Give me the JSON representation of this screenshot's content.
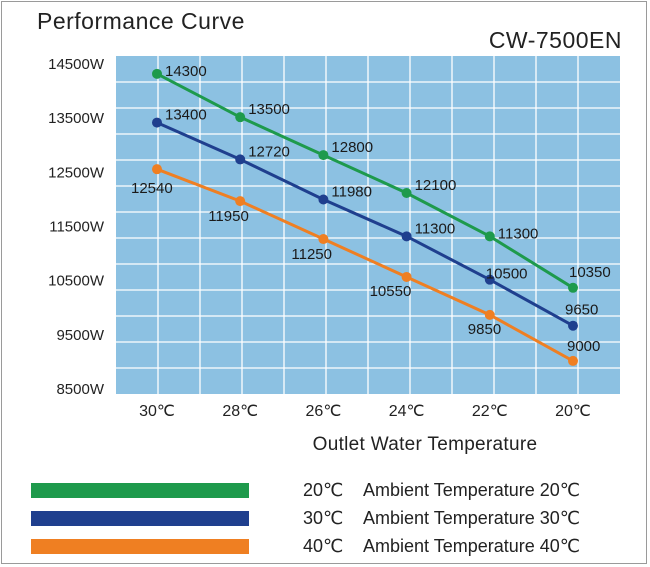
{
  "header": {
    "title": "Performance Curve",
    "model": "CW-7500EN"
  },
  "colors": {
    "plot_background": "#8cc1e2",
    "grid": "#ffffff",
    "series_20": "#1e9a4c",
    "series_30": "#1f3f8e",
    "series_40": "#ef7f22"
  },
  "legend": [
    {
      "swatch_color": "#1e9a4c",
      "temp": "20℃",
      "desc": "Ambient Temperature 20℃"
    },
    {
      "swatch_color": "#1f3f8e",
      "temp": "30℃",
      "desc": "Ambient Temperature 30℃"
    },
    {
      "swatch_color": "#ef7f22",
      "temp": "40℃",
      "desc": "Ambient Temperature 40℃"
    }
  ],
  "chart_data": {
    "type": "line",
    "xlabel": "Outlet Water Temperature",
    "ylabel": "",
    "categories": [
      "30℃",
      "28℃",
      "26℃",
      "24℃",
      "22℃",
      "20℃"
    ],
    "ylim": [
      8500,
      14500
    ],
    "y_ticks": [
      14500,
      13500,
      12500,
      11500,
      10500,
      9500,
      8500
    ],
    "y_tick_labels": [
      "14500W",
      "13500W",
      "12500W",
      "11500W",
      "10500W",
      "9500W",
      "8500W"
    ],
    "grid": true,
    "legend_position": "bottom",
    "series": [
      {
        "name": "Ambient Temperature 20℃",
        "color": "#1e9a4c",
        "values": [
          14300,
          13500,
          12800,
          12100,
          11300,
          10350
        ]
      },
      {
        "name": "Ambient Temperature 30℃",
        "color": "#1f3f8e",
        "values": [
          13400,
          12720,
          11980,
          11300,
          10500,
          9650
        ]
      },
      {
        "name": "Ambient Temperature 40℃",
        "color": "#ef7f22",
        "values": [
          12540,
          11950,
          11250,
          10550,
          9850,
          9000
        ]
      }
    ]
  }
}
